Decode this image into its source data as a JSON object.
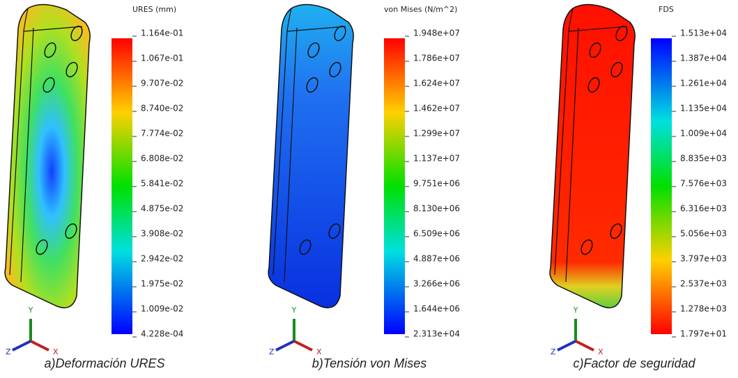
{
  "panels": [
    {
      "title": "URES (mm)",
      "caption": "a)Deformación URES",
      "ticks": [
        "1.164e-01",
        "1.067e-01",
        "9.707e-02",
        "8.740e-02",
        "7.774e-02",
        "6.808e-02",
        "5.841e-02",
        "4.875e-02",
        "3.908e-02",
        "2.942e-02",
        "1.975e-02",
        "1.009e-02",
        "4.228e-04"
      ],
      "axes": {
        "x": "X",
        "y": "Y",
        "z": "Z"
      }
    },
    {
      "title": "von Mises (N/m^2)",
      "caption": "b)Tensión von Mises",
      "ticks": [
        "1.948e+07",
        "1.786e+07",
        "1.624e+07",
        "1.462e+07",
        "1.299e+07",
        "1.137e+07",
        "9.751e+06",
        "8.130e+06",
        "6.509e+06",
        "4.887e+06",
        "3.266e+06",
        "1.644e+06",
        "2.313e+04"
      ],
      "axes": {
        "x": "X",
        "y": "Y",
        "z": "Z"
      }
    },
    {
      "title": "FDS",
      "caption": "c)Factor de seguridad",
      "ticks": [
        "1.513e+04",
        "1.387e+04",
        "1.261e+04",
        "1.135e+04",
        "1.009e+04",
        "8.835e+03",
        "7.576e+03",
        "6.316e+03",
        "5.056e+03",
        "3.797e+03",
        "2.537e+03",
        "1.278e+03",
        "1.797e+01"
      ],
      "axes": {
        "x": "X",
        "y": "Y",
        "z": "Z"
      }
    }
  ]
}
